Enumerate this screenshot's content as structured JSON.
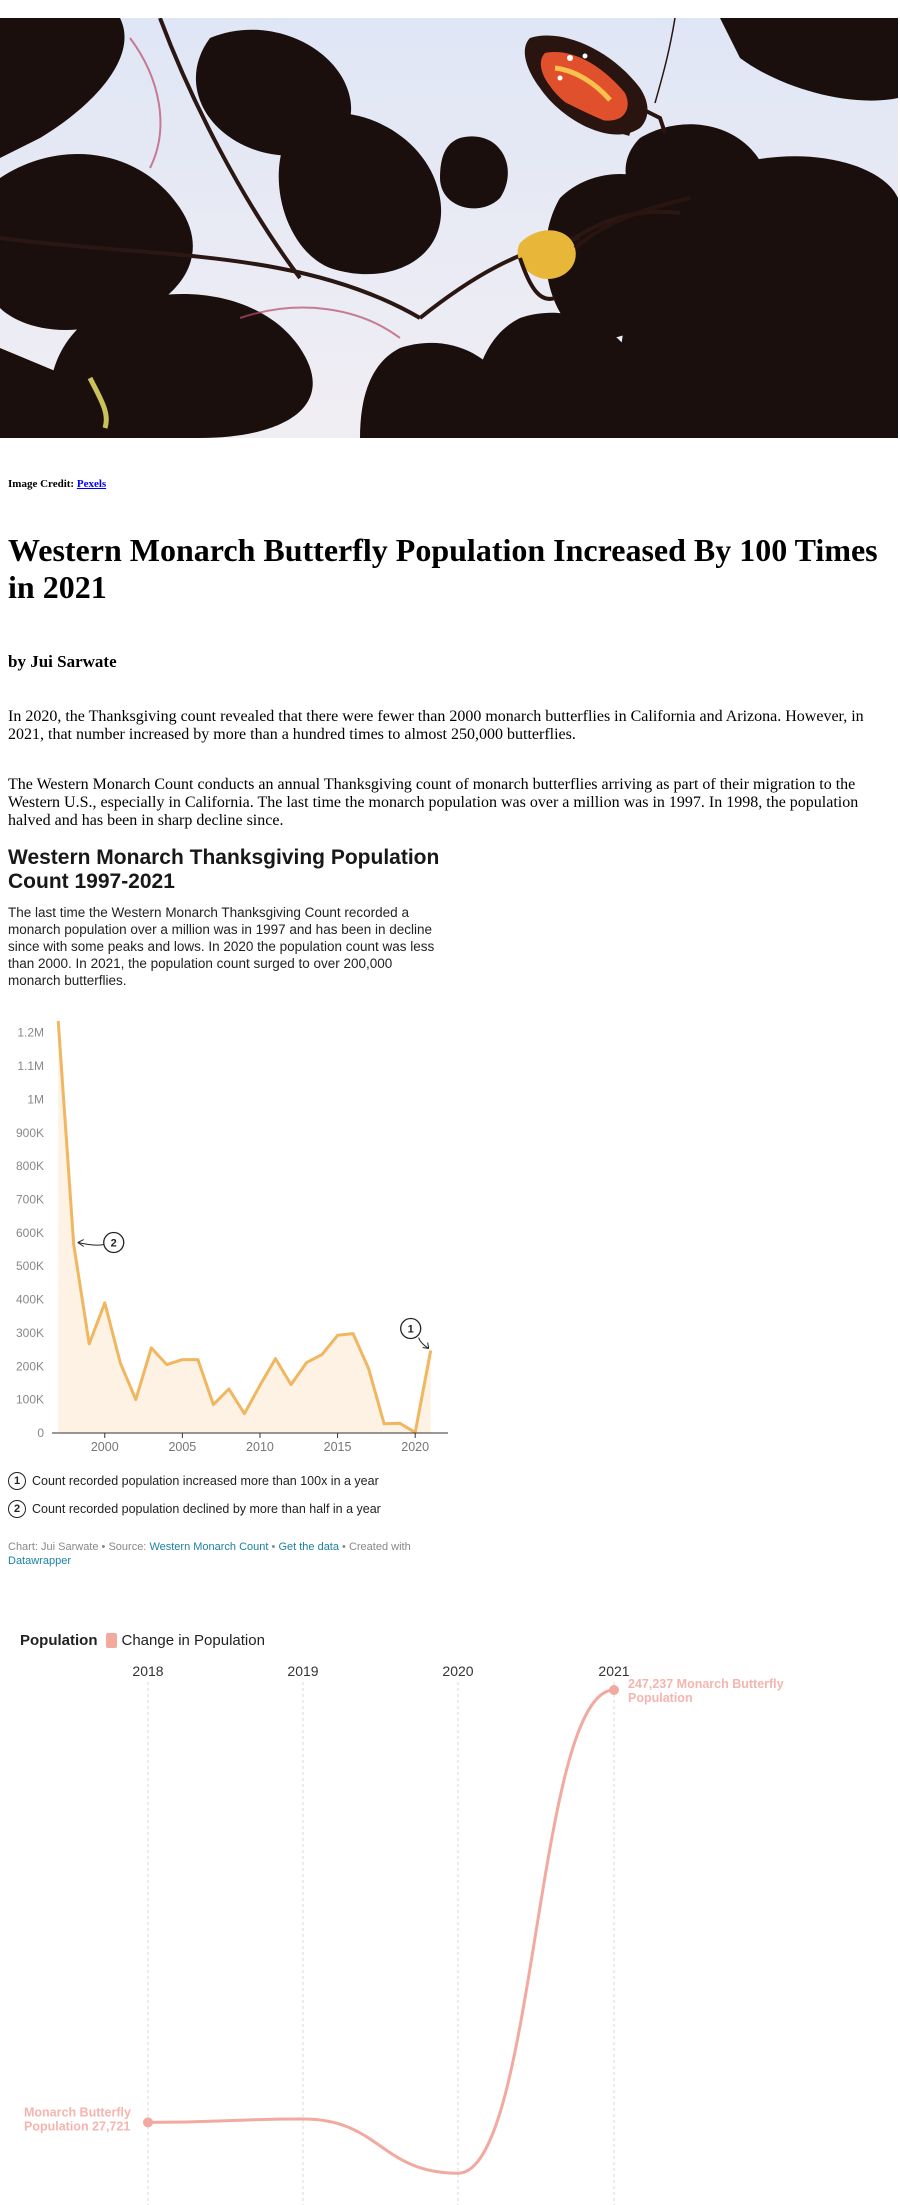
{
  "hero_image": {
    "alt": "Monarch butterfly on leaves silhouette"
  },
  "credit": {
    "prefix": "Image Credit:",
    "link": "Pexels"
  },
  "headline": "Western Monarch Butterfly Population Increased By 100 Times in 2021",
  "byline": "by Jui Sarwate",
  "paragraphs": [
    "In 2020, the Thanksgiving count revealed that there were fewer than 2000 monarch butterflies in California and Arizona. However, in 2021, that number increased by more than a hundred times to almost 250,000 butterflies.",
    "The Western Monarch Count conducts an annual Thanksgiving count of monarch butterflies arriving as part of their migration to the Western U.S., especially in California. The last time the monarch population was over a million was in 1997. In 1998, the population halved and has been in sharp decline since."
  ],
  "datawrapper": {
    "title": "Western Monarch Thanksgiving Population Count 1997-2021",
    "description": "The last time the Western Monarch Thanksgiving Count recorded a monarch population over a million was in 1997 and has been in decline since with some peaks and lows. In 2020 the population count was less than 2000. In 2021, the population count surged to over 200,000 monarch butterflies.",
    "notes": [
      {
        "num": "1",
        "text": "Count recorded population increased more than 100x in a year"
      },
      {
        "num": "2",
        "text": "Count recorded population declined by more than half in a year"
      }
    ],
    "source": {
      "chart_by": "Chart: Jui Sarwate",
      "source_prefix": "Source:",
      "source_link": "Western Monarch Count",
      "data_link": "Get the data",
      "created_with": "Created with",
      "tool_link": "Datawrapper"
    },
    "colors": {
      "line": "#f0b660",
      "fill": "#fdf2e3"
    }
  },
  "chart_data": [
    {
      "type": "area",
      "title": "Western Monarch Thanksgiving Population Count 1997-2021",
      "x": [
        1997,
        1998,
        1999,
        2000,
        2001,
        2002,
        2003,
        2004,
        2005,
        2006,
        2007,
        2008,
        2009,
        2010,
        2011,
        2012,
        2013,
        2014,
        2015,
        2016,
        2017,
        2018,
        2019,
        2020,
        2021
      ],
      "values": [
        1235000,
        565000,
        267000,
        390000,
        210000,
        100000,
        255000,
        205000,
        220000,
        220000,
        85000,
        132000,
        58000,
        143000,
        223000,
        145000,
        211000,
        235000,
        293000,
        298000,
        193000,
        27721,
        29418,
        1914,
        247237
      ],
      "ylim": [
        0,
        1250000
      ],
      "yticks": [
        0,
        100000,
        200000,
        300000,
        400000,
        500000,
        600000,
        700000,
        800000,
        900000,
        1000000,
        1100000,
        1200000
      ],
      "ytick_labels": [
        "0",
        "100K",
        "200K",
        "300K",
        "400K",
        "500K",
        "600K",
        "700K",
        "800K",
        "900K",
        "1M",
        "1.1M",
        "1.2M"
      ],
      "xticks": [
        2000,
        2005,
        2010,
        2015,
        2020
      ],
      "annotations": [
        {
          "num": "1",
          "x": 2021
        },
        {
          "num": "2",
          "x": 1998
        }
      ]
    },
    {
      "type": "line",
      "legend_title": "Population",
      "series": [
        {
          "name": "Change in Population",
          "color": "#f2a9a0"
        }
      ],
      "categories": [
        "2018",
        "2019",
        "2020",
        "2021"
      ],
      "values": [
        27721,
        29418,
        1914,
        247237
      ],
      "labels": {
        "start": [
          "Monarch Butterfly",
          "Population 27,721"
        ],
        "end": [
          "247,237 Monarch Butterfly",
          "Population"
        ]
      }
    }
  ]
}
